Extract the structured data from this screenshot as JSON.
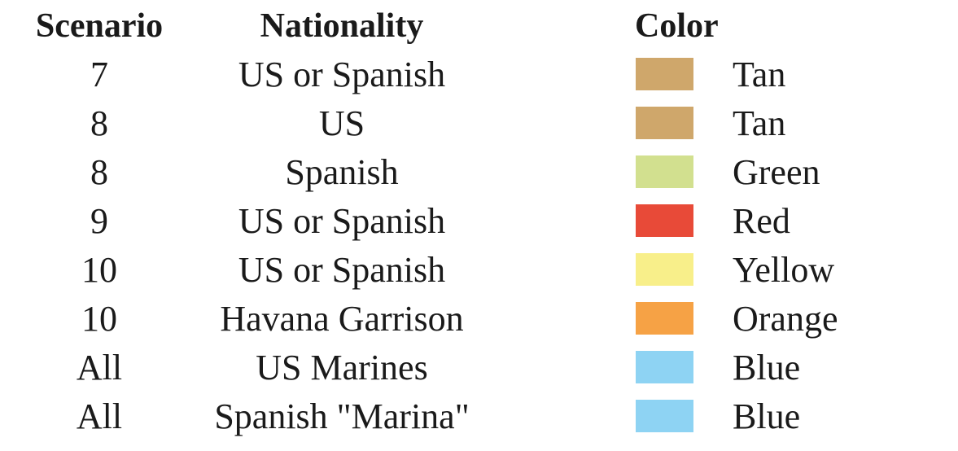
{
  "headers": {
    "scenario": "Scenario",
    "nationality": "Nationality",
    "color": "Color"
  },
  "rows": [
    {
      "scenario": "7",
      "nationality": "US or Spanish",
      "color_name": "Tan",
      "swatch": "#cfa76b"
    },
    {
      "scenario": "8",
      "nationality": "US",
      "color_name": "Tan",
      "swatch": "#cfa76b"
    },
    {
      "scenario": "8",
      "nationality": "Spanish",
      "color_name": "Green",
      "swatch": "#d2e08f"
    },
    {
      "scenario": "9",
      "nationality": "US or Spanish",
      "color_name": "Red",
      "swatch": "#e84a38"
    },
    {
      "scenario": "10",
      "nationality": "US or Spanish",
      "color_name": "Yellow",
      "swatch": "#f8ef8a"
    },
    {
      "scenario": "10",
      "nationality": "Havana Garrison",
      "color_name": "Orange",
      "swatch": "#f6a245"
    },
    {
      "scenario": "All",
      "nationality": "US Marines",
      "color_name": "Blue",
      "swatch": "#8ed3f3"
    },
    {
      "scenario": "All",
      "nationality": "Spanish \"Marina\"",
      "color_name": "Blue",
      "swatch": "#8ed3f3"
    }
  ]
}
